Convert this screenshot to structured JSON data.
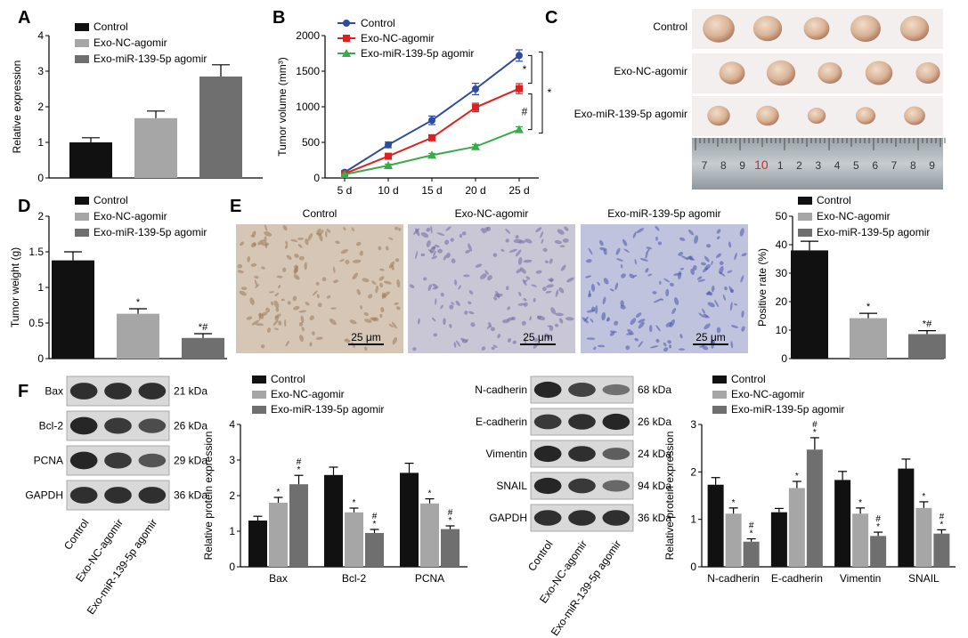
{
  "colors": {
    "control": "#111111",
    "nc": "#a6a6a6",
    "mir": "#6f6f6f",
    "line_control": "#2b4ca0",
    "line_nc": "#e02020",
    "line_mir": "#3aaa4a"
  },
  "groups": [
    "Control",
    "Exo-NC-agomir",
    "Exo-miR-139-5p agomir"
  ],
  "panels": {
    "A": {
      "letter": "A"
    },
    "B": {
      "letter": "B"
    },
    "C": {
      "letter": "C",
      "tumor_counts": [
        5,
        5,
        5
      ],
      "ruler_numbers": [
        "7",
        "8",
        "9",
        "10",
        "1",
        "2",
        "3",
        "4",
        "5",
        "6",
        "7",
        "8",
        "9"
      ]
    },
    "D": {
      "letter": "D"
    },
    "E": {
      "letter": "E",
      "scale_bar": "25 μm",
      "image_titles": [
        "Control",
        "Exo-NC-agomir",
        "Exo-miR-139-5p agomir"
      ]
    },
    "F": {
      "letter": "F",
      "blot1": {
        "rows": [
          {
            "name": "Bax",
            "kda": "21 kDa"
          },
          {
            "name": "Bcl-2",
            "kda": "26 kDa"
          },
          {
            "name": "PCNA",
            "kda": "29 kDa"
          },
          {
            "name": "GAPDH",
            "kda": "36 kDa"
          }
        ],
        "lanes": [
          "Control",
          "Exo-NC-agomir",
          "Exo-miR-139-5p agomir"
        ]
      },
      "blot2": {
        "rows": [
          {
            "name": "N-cadherin",
            "kda": "68 kDa"
          },
          {
            "name": "E-cadherin",
            "kda": "26 kDa"
          },
          {
            "name": "Vimentin",
            "kda": "24 kDa"
          },
          {
            "name": "SNAIL",
            "kda": "94 kDa"
          },
          {
            "name": "GAPDH",
            "kda": "36 kDa"
          }
        ],
        "lanes": [
          "Control",
          "Exo-NC-agomir",
          "Exo-miR-139-5p agomir"
        ]
      }
    }
  },
  "chart_data": [
    {
      "panel": "A",
      "type": "bar",
      "categories": [
        "Control",
        "Exo-NC-agomir",
        "Exo-miR-139-5p agomir"
      ],
      "values": [
        1.0,
        1.68,
        2.85
      ],
      "errors": [
        0.13,
        0.2,
        0.33
      ],
      "ylabel": "Relative expression",
      "ylim": [
        0,
        4
      ],
      "yticks": [
        0,
        1,
        2,
        3,
        4
      ],
      "legend": [
        "Control",
        "Exo-NC-agomir",
        "Exo-miR-139-5p agomir"
      ],
      "legend_position": "top"
    },
    {
      "panel": "B",
      "type": "line",
      "x": [
        "5 d",
        "10 d",
        "15 d",
        "20 d",
        "25 d"
      ],
      "series": [
        {
          "name": "Control",
          "values": [
            80,
            465,
            810,
            1250,
            1720
          ],
          "errors": [
            20,
            40,
            60,
            80,
            80
          ]
        },
        {
          "name": "Exo-NC-agomir",
          "values": [
            60,
            305,
            565,
            990,
            1255
          ],
          "errors": [
            15,
            30,
            40,
            60,
            70
          ]
        },
        {
          "name": "Exo-miR-139-5p agomir",
          "values": [
            50,
            175,
            320,
            440,
            680
          ],
          "errors": [
            10,
            20,
            25,
            30,
            40
          ]
        }
      ],
      "ylabel": "Tumor volume (mm³)",
      "ylim": [
        0,
        2000
      ],
      "yticks": [
        0,
        500,
        1000,
        1500,
        2000
      ],
      "significance": [
        {
          "label": "*",
          "between": [
            "Control",
            "Exo-NC-agomir"
          ]
        },
        {
          "label": "#",
          "between": [
            "Exo-NC-agomir",
            "Exo-miR-139-5p agomir"
          ]
        },
        {
          "label": "*",
          "between": [
            "Control",
            "Exo-miR-139-5p agomir"
          ]
        }
      ],
      "legend_position": "top-left"
    },
    {
      "panel": "D",
      "type": "bar",
      "categories": [
        "Control",
        "Exo-NC-agomir",
        "Exo-miR-139-5p agomir"
      ],
      "values": [
        1.38,
        0.63,
        0.29
      ],
      "errors": [
        0.12,
        0.07,
        0.06
      ],
      "marks": [
        "",
        "*",
        "*#"
      ],
      "ylabel": "Tumor weight (g)",
      "ylim": [
        0,
        2.0
      ],
      "yticks": [
        0,
        0.5,
        1.0,
        1.5,
        2.0
      ],
      "legend": [
        "Control",
        "Exo-NC-agomir",
        "Exo-miR-139-5p agomir"
      ],
      "legend_position": "top"
    },
    {
      "panel": "E",
      "type": "bar",
      "categories": [
        "Control",
        "Exo-NC-agomir",
        "Exo-miR-139-5p agomir"
      ],
      "values": [
        38,
        14.2,
        8.6
      ],
      "errors": [
        3.2,
        1.7,
        1.2
      ],
      "marks": [
        "",
        "*",
        "*#"
      ],
      "ylabel": "Positive rate (%)",
      "ylim": [
        0,
        50
      ],
      "yticks": [
        0,
        10,
        20,
        30,
        40,
        50
      ],
      "legend": [
        "Control",
        "Exo-NC-agomir",
        "Exo-miR-139-5p agomir"
      ],
      "legend_position": "top"
    },
    {
      "panel": "F1",
      "type": "bar",
      "categories": [
        "Bax",
        "Bcl-2",
        "PCNA"
      ],
      "series": [
        {
          "name": "Control",
          "values": [
            1.3,
            2.58,
            2.64
          ],
          "errors": [
            0.12,
            0.22,
            0.27
          ],
          "marks": [
            "",
            "",
            ""
          ]
        },
        {
          "name": "Exo-NC-agomir",
          "values": [
            1.8,
            1.53,
            1.78
          ],
          "errors": [
            0.15,
            0.12,
            0.13
          ],
          "marks": [
            "*",
            "*",
            "*"
          ]
        },
        {
          "name": "Exo-miR-139-5p agomir",
          "values": [
            2.32,
            0.95,
            1.06
          ],
          "errors": [
            0.25,
            0.1,
            0.09
          ],
          "marks": [
            "#*",
            "#*",
            "#*"
          ]
        }
      ],
      "ylabel": "Relative protein expression",
      "ylim": [
        0,
        4
      ],
      "yticks": [
        0,
        1,
        2,
        3,
        4
      ],
      "legend_position": "top"
    },
    {
      "panel": "F2",
      "type": "bar",
      "categories": [
        "N-cadherin",
        "E-cadherin",
        "Vimentin",
        "SNAIL"
      ],
      "series": [
        {
          "name": "Control",
          "values": [
            1.73,
            1.15,
            1.83,
            2.07
          ],
          "errors": [
            0.15,
            0.08,
            0.18,
            0.2
          ],
          "marks": [
            "",
            "",
            "",
            ""
          ]
        },
        {
          "name": "Exo-NC-agomir",
          "values": [
            1.12,
            1.66,
            1.12,
            1.24
          ],
          "errors": [
            0.12,
            0.14,
            0.12,
            0.13
          ],
          "marks": [
            "*",
            "*",
            "*",
            "*"
          ]
        },
        {
          "name": "Exo-miR-139-5p agomir",
          "values": [
            0.53,
            2.47,
            0.65,
            0.7
          ],
          "errors": [
            0.06,
            0.25,
            0.08,
            0.08
          ],
          "marks": [
            "#*",
            "#*",
            "#*",
            "#*"
          ]
        }
      ],
      "ylabel": "Relative protein expression",
      "ylim": [
        0,
        3
      ],
      "yticks": [
        0,
        1,
        2,
        3
      ],
      "legend_position": "top"
    }
  ]
}
